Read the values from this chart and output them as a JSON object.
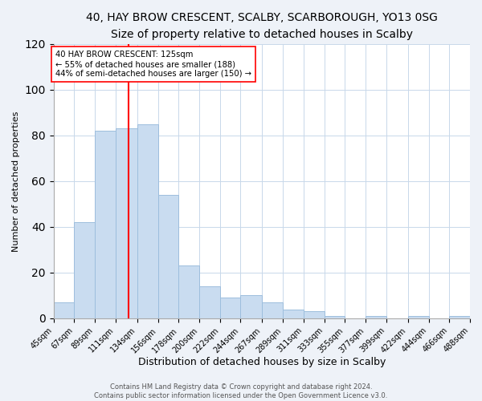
{
  "title": "40, HAY BROW CRESCENT, SCALBY, SCARBOROUGH, YO13 0SG",
  "subtitle": "Size of property relative to detached houses in Scalby",
  "xlabel": "Distribution of detached houses by size in Scalby",
  "ylabel": "Number of detached properties",
  "bar_color": "#c9dcf0",
  "bar_edge_color": "#9dbedd",
  "vline_color": "red",
  "vline_x": 125,
  "annotation_title": "40 HAY BROW CRESCENT: 125sqm",
  "annotation_line1": "← 55% of detached houses are smaller (188)",
  "annotation_line2": "44% of semi-detached houses are larger (150) →",
  "bin_edges": [
    45,
    67,
    89,
    111,
    134,
    156,
    178,
    200,
    222,
    244,
    267,
    289,
    311,
    333,
    355,
    377,
    399,
    422,
    444,
    466,
    488
  ],
  "bin_heights": [
    7,
    42,
    82,
    83,
    85,
    54,
    23,
    14,
    9,
    10,
    7,
    4,
    3,
    1,
    0,
    1,
    0,
    1,
    0,
    1
  ],
  "ylim": [
    0,
    120
  ],
  "yticks": [
    0,
    20,
    40,
    60,
    80,
    100,
    120
  ],
  "footer_line1": "Contains HM Land Registry data © Crown copyright and database right 2024.",
  "footer_line2": "Contains public sector information licensed under the Open Government Licence v3.0.",
  "background_color": "#eef2f8",
  "plot_background": "#ffffff",
  "title_fontsize": 10,
  "subtitle_fontsize": 9,
  "xlabel_fontsize": 9,
  "ylabel_fontsize": 8,
  "tick_fontsize": 7,
  "footer_fontsize": 6
}
